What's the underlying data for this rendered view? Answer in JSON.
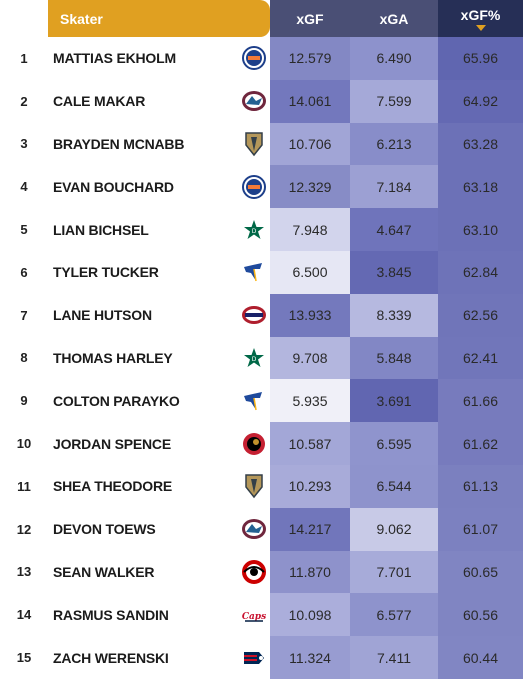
{
  "header": {
    "skater": "Skater",
    "xgf": "xGF",
    "xga": "xGA",
    "xgf_pct": "xGF%"
  },
  "rows": [
    {
      "rank": "1",
      "name": "MATTIAS EKHOLM",
      "team_icon": "oilers-logo-icon",
      "xgf": "12.579",
      "xga": "6.490",
      "xgf_pct": "65.96",
      "c_xgf": "#8388c4",
      "c_xga": "#8d92cc",
      "c_xgfp": "#6066b0"
    },
    {
      "rank": "2",
      "name": "CALE MAKAR",
      "team_icon": "avalanche-logo-icon",
      "xgf": "14.061",
      "xga": "7.599",
      "xgf_pct": "64.92",
      "c_xgf": "#7378bd",
      "c_xga": "#a5a9d8",
      "c_xgfp": "#6469b3"
    },
    {
      "rank": "3",
      "name": "BRAYDEN MCNABB",
      "team_icon": "golden-knights-logo-icon",
      "xgf": "10.706",
      "xga": "6.213",
      "xgf_pct": "63.28",
      "c_xgf": "#a1a5d6",
      "c_xga": "#888dc9",
      "c_xgfp": "#6c71b7"
    },
    {
      "rank": "4",
      "name": "EVAN BOUCHARD",
      "team_icon": "oilers-logo-icon",
      "xgf": "12.329",
      "xga": "7.184",
      "xgf_pct": "63.18",
      "c_xgf": "#878cc6",
      "c_xga": "#9ca0d3",
      "c_xgfp": "#6c71b7"
    },
    {
      "rank": "5",
      "name": "LIAN BICHSEL",
      "team_icon": "stars-logo-icon",
      "xgf": "7.948",
      "xga": "4.647",
      "xgf_pct": "63.10",
      "c_xgf": "#d2d4ec",
      "c_xga": "#6f74bb",
      "c_xgfp": "#6c71b7"
    },
    {
      "rank": "6",
      "name": "TYLER TUCKER",
      "team_icon": "blues-logo-icon",
      "xgf": "6.500",
      "xga": "3.845",
      "xgf_pct": "62.84",
      "c_xgf": "#e6e7f4",
      "c_xga": "#6469b3",
      "c_xgfp": "#6e73b8"
    },
    {
      "rank": "7",
      "name": "LANE HUTSON",
      "team_icon": "canadiens-logo-icon",
      "xgf": "13.933",
      "xga": "8.339",
      "xgf_pct": "62.56",
      "c_xgf": "#7479bd",
      "c_xga": "#b6b9e0",
      "c_xgfp": "#7075b9"
    },
    {
      "rank": "8",
      "name": "THOMAS HARLEY",
      "team_icon": "stars-logo-icon",
      "xgf": "9.708",
      "xga": "5.848",
      "xgf_pct": "62.41",
      "c_xgf": "#b3b6de",
      "c_xga": "#8287c5",
      "c_xgfp": "#7176ba"
    },
    {
      "rank": "9",
      "name": "COLTON PARAYKO",
      "team_icon": "blues-logo-icon",
      "xgf": "5.935",
      "xga": "3.691",
      "xgf_pct": "61.66",
      "c_xgf": "#f0f0f8",
      "c_xga": "#6166b1",
      "c_xgfp": "#777bbd"
    },
    {
      "rank": "10",
      "name": "JORDAN SPENCE",
      "team_icon": "senators-logo-icon",
      "xgf": "10.587",
      "xga": "6.595",
      "xgf_pct": "61.62",
      "c_xgf": "#a3a7d7",
      "c_xga": "#8f94cd",
      "c_xgfp": "#777bbd"
    },
    {
      "rank": "11",
      "name": "SHEA THEODORE",
      "team_icon": "golden-knights-logo-icon",
      "xgf": "10.293",
      "xga": "6.544",
      "xgf_pct": "61.13",
      "c_xgf": "#a8abd9",
      "c_xga": "#8e93cc",
      "c_xgfp": "#7b80bf"
    },
    {
      "rank": "12",
      "name": "DEVON TOEWS",
      "team_icon": "avalanche-logo-icon",
      "xgf": "14.217",
      "xga": "9.062",
      "xgf_pct": "61.07",
      "c_xgf": "#7176bb",
      "c_xga": "#c8cae7",
      "c_xgfp": "#7c81c0"
    },
    {
      "rank": "13",
      "name": "SEAN WALKER",
      "team_icon": "hurricanes-logo-icon",
      "xgf": "11.870",
      "xga": "7.701",
      "xgf_pct": "60.65",
      "c_xgf": "#8e92cb",
      "c_xga": "#a7abd9",
      "c_xgfp": "#8085c2"
    },
    {
      "rank": "14",
      "name": "RASMUS SANDIN",
      "team_icon": "capitals-logo-icon",
      "xgf": "10.098",
      "xga": "6.577",
      "xgf_pct": "60.56",
      "c_xgf": "#abaedb",
      "c_xga": "#8e93cc",
      "c_xgfp": "#8085c2"
    },
    {
      "rank": "15",
      "name": "ZACH WERENSKI",
      "team_icon": "blue-jackets-logo-icon",
      "xgf": "11.324",
      "xga": "7.411",
      "xgf_pct": "60.44",
      "c_xgf": "#989cd1",
      "c_xga": "#a0a4d5",
      "c_xgfp": "#8186c3"
    }
  ]
}
